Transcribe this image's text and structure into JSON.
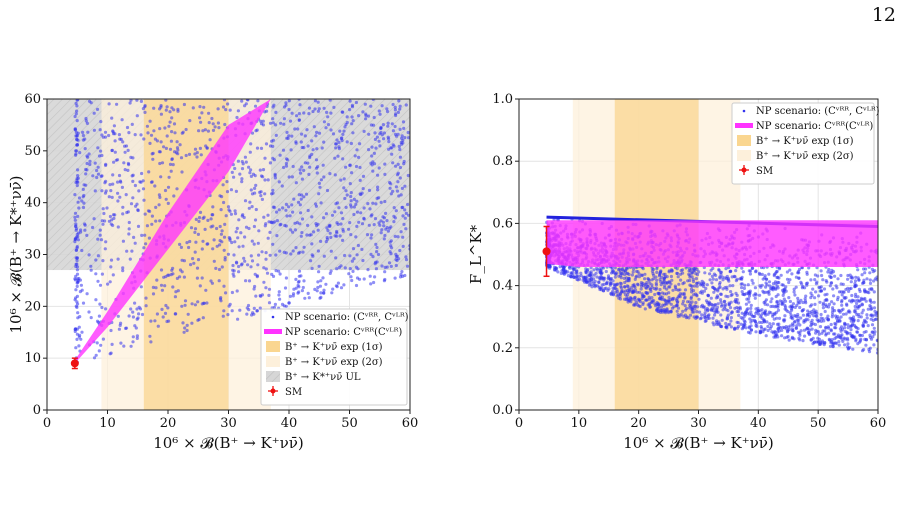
{
  "page": {
    "number": "12"
  },
  "chart_data": [
    {
      "type": "scatter",
      "title": "",
      "xlabel": "10⁶ × 𝓑(B⁺ → K⁺νν̄)",
      "ylabel": "10⁶ × 𝓑(B⁺ → K*⁺νν̄)",
      "xlim": [
        0,
        60
      ],
      "ylim": [
        0,
        60
      ],
      "xticks": [
        "0",
        "10",
        "20",
        "30",
        "40",
        "50",
        "60"
      ],
      "yticks": [
        "0",
        "10",
        "20",
        "30",
        "40",
        "50",
        "60"
      ],
      "grid": true,
      "legend_position": "lower-right",
      "legend": [
        "NP scenario: (C_V^RR, C_V^LR)",
        "NP scenario: C_V^RR(C_V^LR)",
        "B⁺ → K⁺νν̄ exp (1σ)",
        "B⁺ → K⁺νν̄ exp (2σ)",
        "B⁺ → K*⁺νν̄ UL",
        "SM"
      ],
      "colors": {
        "scatter": "#3333ee",
        "band": "#ff33ff",
        "exp1": "#fad690",
        "exp2": "#fdf0db",
        "ul": "#cccccc",
        "sm": "#ee1111"
      },
      "bands": {
        "exp_1sigma_x": [
          16,
          30
        ],
        "exp_2sigma_x": [
          9,
          37
        ],
        "ul_y_min": 27
      },
      "sm_point": {
        "x": 4.6,
        "y": 9.0,
        "yerr": 1.0,
        "xerr": 0.5
      },
      "np_line_band": {
        "x": [
          4.6,
          10,
          20,
          30,
          37
        ],
        "y_low": [
          9.0,
          16,
          31,
          46,
          60
        ],
        "y_high": [
          9.6,
          19,
          38,
          55,
          60
        ]
      },
      "scatter_region": {
        "x_min": 4.6,
        "x_max": 60,
        "y_lower_at_x": [
          [
            4.6,
            8.8
          ],
          [
            20,
            14
          ],
          [
            40,
            20
          ],
          [
            60,
            26
          ]
        ],
        "y_max": 60
      }
    },
    {
      "type": "scatter",
      "title": "",
      "xlabel": "10⁶ × 𝓑(B⁺ → K⁺νν̄)",
      "ylabel": "F_L^K*",
      "xlim": [
        0,
        60
      ],
      "ylim": [
        0.0,
        1.0
      ],
      "xticks": [
        "0",
        "10",
        "20",
        "30",
        "40",
        "50",
        "60"
      ],
      "yticks": [
        "0.0",
        "0.2",
        "0.4",
        "0.6",
        "0.8",
        "1.0"
      ],
      "grid": true,
      "legend_position": "upper-right",
      "legend": [
        "NP scenario: (C_V^RR, C_V^LR)",
        "NP scenario: C_V^RR(C_V^LR)",
        "B⁺ → K⁺νν̄ exp (1σ)",
        "B⁺ → K⁺νν̄ exp (2σ)",
        "SM"
      ],
      "colors": {
        "scatter": "#3333ee",
        "band": "#ff33ff",
        "exp1": "#fad690",
        "exp2": "#fdf0db",
        "sm": "#ee1111"
      },
      "bands": {
        "exp_1sigma_x": [
          16,
          30
        ],
        "exp_2sigma_x": [
          9,
          37
        ]
      },
      "sm_point": {
        "x": 4.6,
        "y": 0.51,
        "yerr": 0.08,
        "xerr": 0.5
      },
      "np_line_band": {
        "x": [
          4.6,
          10,
          20,
          30,
          40,
          50,
          60
        ],
        "y_low": [
          0.47,
          0.46,
          0.46,
          0.46,
          0.46,
          0.46,
          0.46
        ],
        "y_high": [
          0.61,
          0.61,
          0.61,
          0.61,
          0.61,
          0.61,
          0.61
        ]
      },
      "scatter_region": {
        "x_min": 4.6,
        "x_max": 60,
        "y_top_at_x": [
          [
            4.6,
            0.62
          ],
          [
            60,
            0.59
          ]
        ],
        "y_lower_at_x": [
          [
            4.6,
            0.46
          ],
          [
            20,
            0.33
          ],
          [
            40,
            0.24
          ],
          [
            60,
            0.18
          ]
        ]
      }
    }
  ]
}
